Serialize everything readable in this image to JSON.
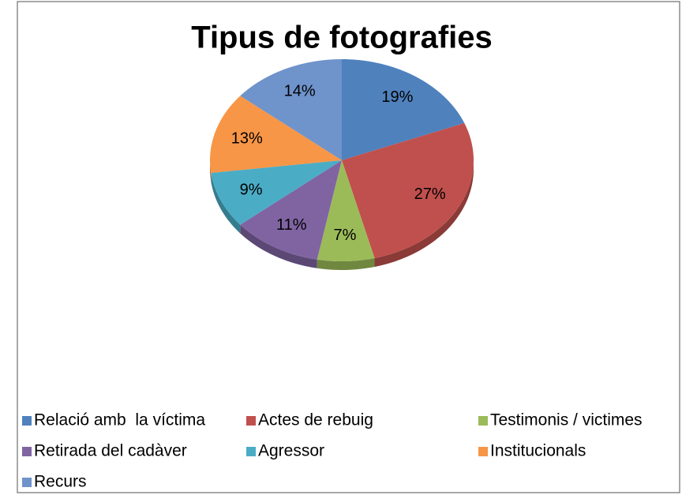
{
  "chart_data": {
    "type": "pie",
    "title": "Tipus de fotografies",
    "categories": [
      "Relació amb  la víctima",
      "Actes de rebuig",
      "Testimonis / victimes",
      "Retirada del cadàver",
      "Agressor",
      "Institucionals",
      "Recurs"
    ],
    "values": [
      19,
      27,
      7,
      11,
      9,
      13,
      14
    ],
    "value_labels": [
      "19%",
      "27%",
      "7%",
      "11%",
      "9%",
      "13%",
      "14%"
    ],
    "colors": [
      "#4f81bd",
      "#c0504d",
      "#9bbb59",
      "#8064a2",
      "#4bacc6",
      "#f79646",
      "#6f93cb"
    ],
    "legend": "bottom"
  }
}
